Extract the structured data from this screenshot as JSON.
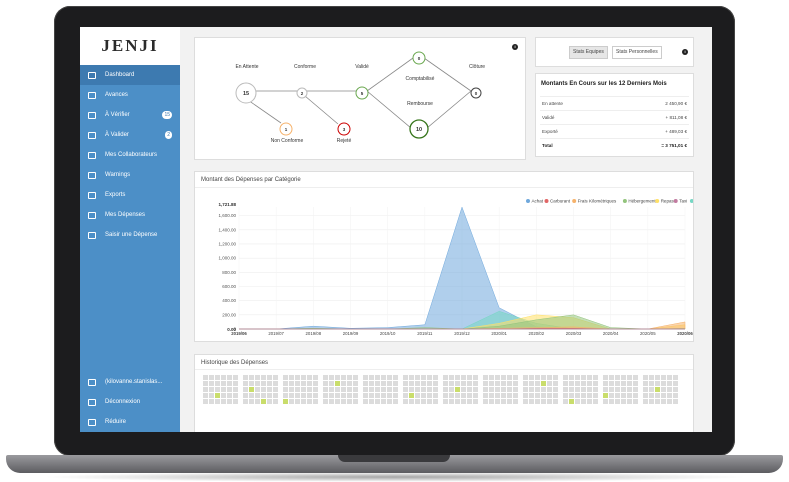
{
  "app": {
    "logo": "JENJI"
  },
  "sidebar": {
    "items": [
      {
        "label": "Dashboard",
        "icon": "chart-icon",
        "active": true
      },
      {
        "label": "Avances",
        "icon": "card-icon"
      },
      {
        "label": "À Vérifier",
        "icon": "calendar-check-icon",
        "badge": "15"
      },
      {
        "label": "À Valider",
        "icon": "calendar-approve-icon",
        "badge": "2"
      },
      {
        "label": "Mes Collaborateurs",
        "icon": "users-icon"
      },
      {
        "label": "Warnings",
        "icon": "warning-icon"
      },
      {
        "label": "Exports",
        "icon": "export-icon"
      },
      {
        "label": "Mes Dépenses",
        "icon": "expenses-icon"
      },
      {
        "label": "Saisir une Dépense",
        "icon": "add-expense-icon"
      }
    ],
    "bottom": [
      {
        "label": "(kilovanne.stanislas...",
        "icon": "user-icon"
      },
      {
        "label": "Déconnexion",
        "icon": "power-icon"
      },
      {
        "label": "Réduire",
        "icon": "collapse-icon"
      }
    ]
  },
  "workflow": {
    "nodes": [
      {
        "label": "En Attente",
        "count": "15"
      },
      {
        "label": "Conforme",
        "count": "2"
      },
      {
        "label": "Validé",
        "count": "5"
      },
      {
        "label": "Comptabilisé",
        "count": "0"
      },
      {
        "label": "Clôture",
        "count": "0"
      },
      {
        "label": "Rembourse",
        "count": "10"
      },
      {
        "label": "Non Conforme",
        "count": "1"
      },
      {
        "label": "Rejeté",
        "count": "3"
      }
    ]
  },
  "stats_toggle": {
    "team": "Stats Equipes",
    "personal": "Stats Personnelles"
  },
  "amounts": {
    "title": "Montants En Cours sur les 12 Derniers Mois",
    "rows": [
      {
        "label": "En attente",
        "value": "2 450,90 €"
      },
      {
        "label": "Validé",
        "value": "+ 811,08 €"
      },
      {
        "label": "Exporté",
        "value": "+ 489,03 €"
      },
      {
        "label": "Total",
        "value": "= 3 751,01 €"
      }
    ]
  },
  "chart": {
    "title": "Montant des Dépenses par Catégorie",
    "legend": [
      {
        "name": "Achat",
        "color": "#6fa8dc"
      },
      {
        "name": "Carburant",
        "color": "#e06666"
      },
      {
        "name": "Frais Kilométriques",
        "color": "#f6b26b"
      },
      {
        "name": "Hébergement",
        "color": "#93c47d"
      },
      {
        "name": "Repas",
        "color": "#ffe066"
      },
      {
        "name": "Taxi",
        "color": "#c27ba0"
      },
      {
        "name": "Voyage",
        "color": "#76d7c4"
      }
    ],
    "max_label": "1,721.88",
    "zero_label": "0.00"
  },
  "chart_data": {
    "type": "area",
    "categories": [
      "2019/06",
      "2019/07",
      "2019/08",
      "2019/09",
      "2019/10",
      "2019/11",
      "2019/12",
      "2020/01",
      "2020/02",
      "2020/03",
      "2020/04",
      "2020/05",
      "2020/06"
    ],
    "ylim": [
      0,
      1721.88
    ],
    "yticks": [
      "0.00",
      "0",
      "200.00",
      "400.00",
      "600.00",
      "800.00",
      "1,000.00",
      "1,200.00",
      "1,400.00",
      "1,600.00",
      "1,721.88"
    ],
    "series": [
      {
        "name": "Achat",
        "values": [
          0,
          0,
          40,
          10,
          20,
          60,
          1720,
          300,
          30,
          0,
          0,
          0,
          0
        ]
      },
      {
        "name": "Voyage",
        "values": [
          0,
          0,
          10,
          0,
          0,
          0,
          0,
          250,
          80,
          0,
          0,
          0,
          0
        ]
      },
      {
        "name": "Repas",
        "values": [
          0,
          0,
          0,
          0,
          0,
          0,
          0,
          80,
          200,
          160,
          0,
          0,
          60
        ]
      },
      {
        "name": "Hébergement",
        "values": [
          0,
          0,
          10,
          0,
          0,
          20,
          0,
          40,
          130,
          200,
          20,
          0,
          10
        ]
      },
      {
        "name": "Frais Kilométriques",
        "values": [
          0,
          0,
          0,
          0,
          0,
          0,
          0,
          10,
          20,
          30,
          0,
          0,
          100
        ]
      },
      {
        "name": "Carburant",
        "values": [
          0,
          0,
          0,
          0,
          0,
          0,
          0,
          0,
          10,
          10,
          0,
          0,
          0
        ]
      },
      {
        "name": "Taxi",
        "values": [
          0,
          0,
          0,
          0,
          0,
          0,
          0,
          0,
          0,
          0,
          0,
          0,
          0
        ]
      }
    ]
  },
  "history": {
    "title": "Historique des Dépenses"
  }
}
